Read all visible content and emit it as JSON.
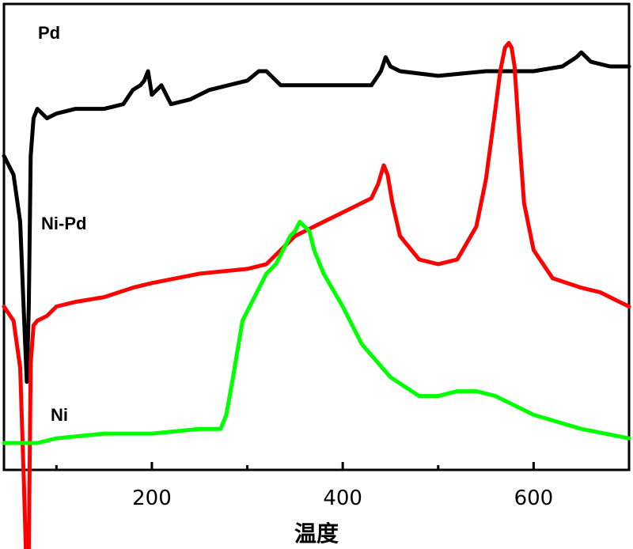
{
  "chart_data": {
    "type": "line",
    "xlabel": "温度",
    "ylabel": "",
    "xlim": [
      45,
      700
    ],
    "y_ticks_shown": false,
    "grid": false,
    "x_major_ticks": [
      200,
      400,
      600
    ],
    "x_minor_ticks": [
      100,
      300,
      500
    ],
    "series": [
      {
        "name": "Pd",
        "color": "#000000",
        "x": [
          45,
          55,
          62,
          66,
          69,
          71,
          73,
          76,
          80,
          90,
          100,
          120,
          150,
          170,
          180,
          188,
          192,
          196,
          200,
          210,
          220,
          240,
          260,
          280,
          300,
          312,
          320,
          335,
          350,
          400,
          430,
          440,
          445,
          450,
          460,
          500,
          550,
          600,
          630,
          645,
          650,
          660,
          680,
          700
        ],
        "y": [
          0.62,
          0.58,
          0.48,
          0.28,
          0.14,
          0.3,
          0.62,
          0.7,
          0.72,
          0.7,
          0.71,
          0.72,
          0.72,
          0.73,
          0.76,
          0.77,
          0.78,
          0.8,
          0.75,
          0.77,
          0.73,
          0.74,
          0.76,
          0.77,
          0.78,
          0.8,
          0.8,
          0.77,
          0.77,
          0.77,
          0.77,
          0.8,
          0.83,
          0.81,
          0.8,
          0.79,
          0.8,
          0.8,
          0.81,
          0.83,
          0.84,
          0.82,
          0.81,
          0.81
        ]
      },
      {
        "name": "Ni-Pd",
        "color": "#ff0000",
        "x": [
          45,
          55,
          62,
          66,
          68,
          70,
          71,
          73,
          76,
          80,
          90,
          100,
          120,
          150,
          180,
          200,
          250,
          300,
          320,
          350,
          380,
          400,
          420,
          430,
          437,
          440,
          443,
          447,
          452,
          460,
          480,
          500,
          520,
          540,
          550,
          560,
          565,
          570,
          574,
          577,
          580,
          585,
          590,
          600,
          620,
          650,
          670,
          690,
          700
        ],
        "y": [
          0.3,
          0.27,
          0.17,
          -0.08,
          -0.22,
          -0.25,
          -0.22,
          0.18,
          0.26,
          0.27,
          0.28,
          0.3,
          0.31,
          0.32,
          0.34,
          0.35,
          0.37,
          0.38,
          0.39,
          0.45,
          0.48,
          0.5,
          0.52,
          0.53,
          0.56,
          0.58,
          0.6,
          0.58,
          0.52,
          0.45,
          0.4,
          0.39,
          0.4,
          0.47,
          0.57,
          0.72,
          0.8,
          0.85,
          0.86,
          0.85,
          0.81,
          0.66,
          0.52,
          0.42,
          0.36,
          0.34,
          0.33,
          0.31,
          0.3
        ]
      },
      {
        "name": "Ni",
        "color": "#00ff00",
        "x": [
          45,
          80,
          100,
          150,
          200,
          250,
          265,
          272,
          278,
          285,
          295,
          310,
          320,
          330,
          340,
          345,
          350,
          355,
          360,
          365,
          370,
          380,
          400,
          420,
          450,
          480,
          500,
          520,
          540,
          560,
          600,
          650,
          700
        ],
        "y": [
          0.01,
          0.01,
          0.02,
          0.03,
          0.03,
          0.04,
          0.04,
          0.04,
          0.07,
          0.15,
          0.27,
          0.33,
          0.37,
          0.39,
          0.43,
          0.45,
          0.46,
          0.48,
          0.47,
          0.46,
          0.42,
          0.37,
          0.3,
          0.22,
          0.15,
          0.11,
          0.11,
          0.12,
          0.12,
          0.11,
          0.07,
          0.04,
          0.02
        ]
      }
    ],
    "legend": "inline labels"
  }
}
